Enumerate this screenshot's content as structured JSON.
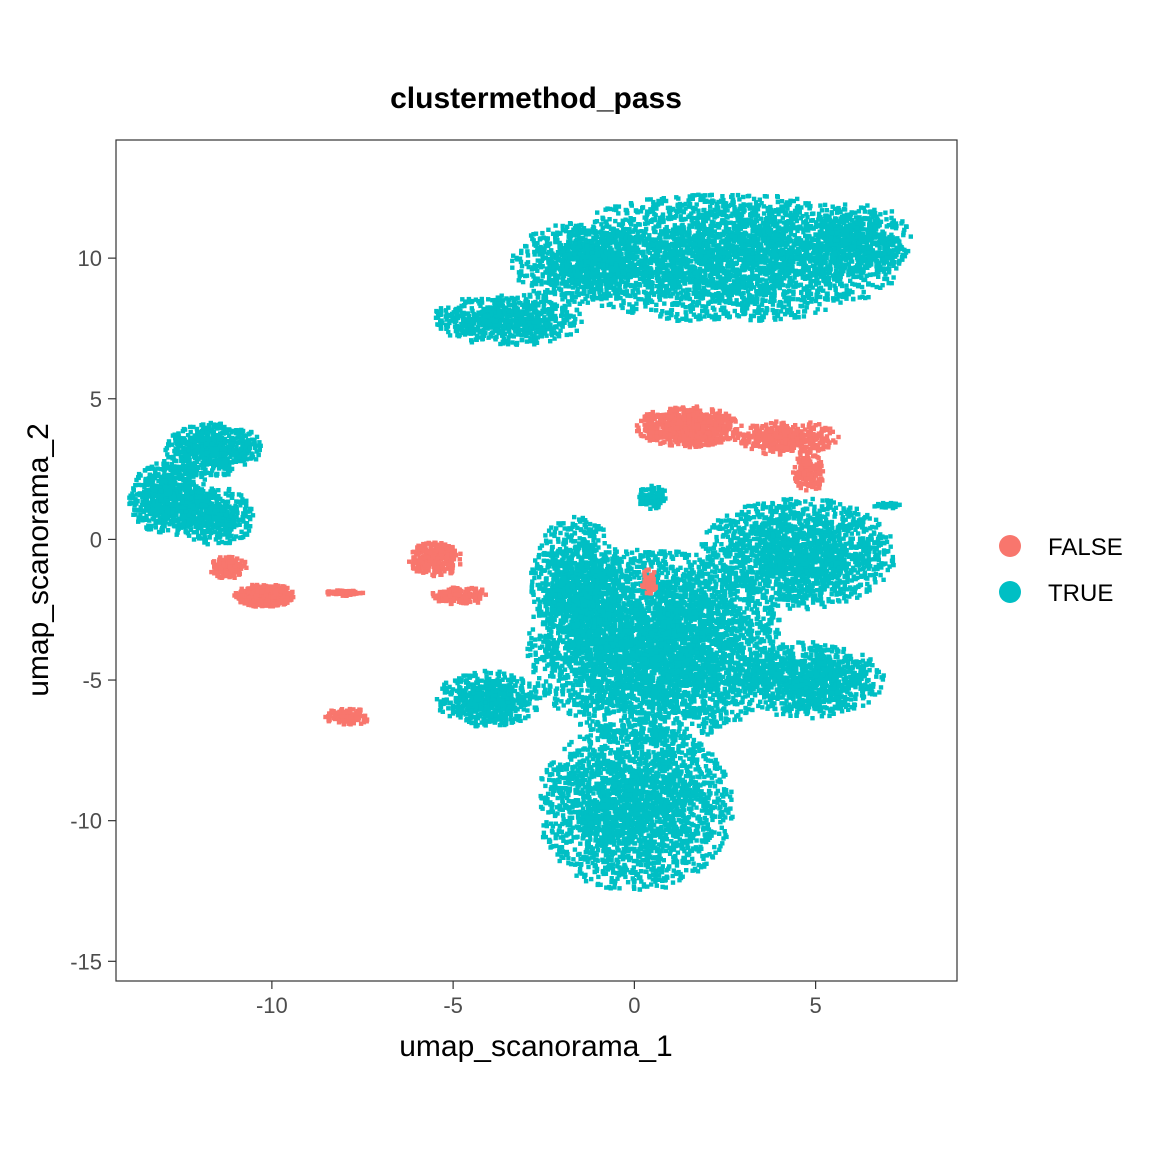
{
  "chart_data": {
    "type": "scatter",
    "title": "clustermethod_pass",
    "xlabel": "umap_scanorama_1",
    "ylabel": "umap_scanorama_2",
    "xlim": [
      -14.3,
      8.9
    ],
    "ylim": [
      -15.7,
      14.2
    ],
    "x_ticks": [
      -10,
      -5,
      0,
      5
    ],
    "y_ticks": [
      -15,
      -10,
      -5,
      0,
      5,
      10
    ],
    "x_tick_labels": [
      "-10",
      "-5",
      "0",
      "5"
    ],
    "y_tick_labels": [
      "-15",
      "-10",
      "-5",
      "0",
      "5",
      "10"
    ],
    "grid": false,
    "legend_position": "right",
    "series": [
      {
        "name": "FALSE",
        "color": "#F8766D",
        "clusters": [
          {
            "cx": 1.5,
            "cy": 4.0,
            "rx": 1.4,
            "ry": 0.7,
            "n": 800
          },
          {
            "cx": 4.2,
            "cy": 3.6,
            "rx": 1.4,
            "ry": 0.6,
            "n": 400
          },
          {
            "cx": 4.8,
            "cy": 2.4,
            "rx": 0.4,
            "ry": 0.8,
            "n": 150
          },
          {
            "cx": -10.2,
            "cy": -2.0,
            "rx": 0.8,
            "ry": 0.4,
            "n": 500
          },
          {
            "cx": -11.2,
            "cy": -1.0,
            "rx": 0.5,
            "ry": 0.4,
            "n": 150
          },
          {
            "cx": -5.5,
            "cy": -0.7,
            "rx": 0.7,
            "ry": 0.6,
            "n": 300
          },
          {
            "cx": -4.8,
            "cy": -2.0,
            "rx": 0.8,
            "ry": 0.3,
            "n": 150
          },
          {
            "cx": -8.0,
            "cy": -1.9,
            "rx": 0.5,
            "ry": 0.1,
            "n": 80
          },
          {
            "cx": -7.9,
            "cy": -6.3,
            "rx": 0.6,
            "ry": 0.3,
            "n": 120
          },
          {
            "cx": 0.4,
            "cy": -1.5,
            "rx": 0.2,
            "ry": 0.5,
            "n": 60
          }
        ]
      },
      {
        "name": "TRUE",
        "color": "#00BFC4",
        "clusters": [
          {
            "cx": 2.5,
            "cy": 10.0,
            "rx": 4.8,
            "ry": 2.2,
            "n": 3500
          },
          {
            "cx": -3.5,
            "cy": 7.8,
            "rx": 2.0,
            "ry": 0.9,
            "n": 700
          },
          {
            "cx": -1.5,
            "cy": 9.8,
            "rx": 1.8,
            "ry": 1.4,
            "n": 700
          },
          {
            "cx": 6.2,
            "cy": 10.6,
            "rx": 1.4,
            "ry": 1.3,
            "n": 500
          },
          {
            "cx": -12.8,
            "cy": 1.5,
            "rx": 1.1,
            "ry": 1.3,
            "n": 700
          },
          {
            "cx": -11.6,
            "cy": 3.2,
            "rx": 1.3,
            "ry": 0.9,
            "n": 600
          },
          {
            "cx": -11.5,
            "cy": 0.8,
            "rx": 1.0,
            "ry": 1.0,
            "n": 400
          },
          {
            "cx": 0.6,
            "cy": -3.8,
            "rx": 3.4,
            "ry": 3.3,
            "n": 4500
          },
          {
            "cx": 4.5,
            "cy": -0.5,
            "rx": 2.6,
            "ry": 1.9,
            "n": 1800
          },
          {
            "cx": 4.8,
            "cy": -5.0,
            "rx": 2.0,
            "ry": 1.3,
            "n": 1000
          },
          {
            "cx": 0.0,
            "cy": -9.5,
            "rx": 2.6,
            "ry": 2.9,
            "n": 2500
          },
          {
            "cx": -4.0,
            "cy": -5.7,
            "rx": 1.4,
            "ry": 1.0,
            "n": 600
          },
          {
            "cx": -1.6,
            "cy": -1.5,
            "rx": 1.2,
            "ry": 2.2,
            "n": 900
          },
          {
            "cx": 0.5,
            "cy": 1.5,
            "rx": 0.4,
            "ry": 0.4,
            "n": 100
          },
          {
            "cx": 7.0,
            "cy": 1.2,
            "rx": 0.4,
            "ry": 0.1,
            "n": 40
          }
        ]
      }
    ]
  }
}
